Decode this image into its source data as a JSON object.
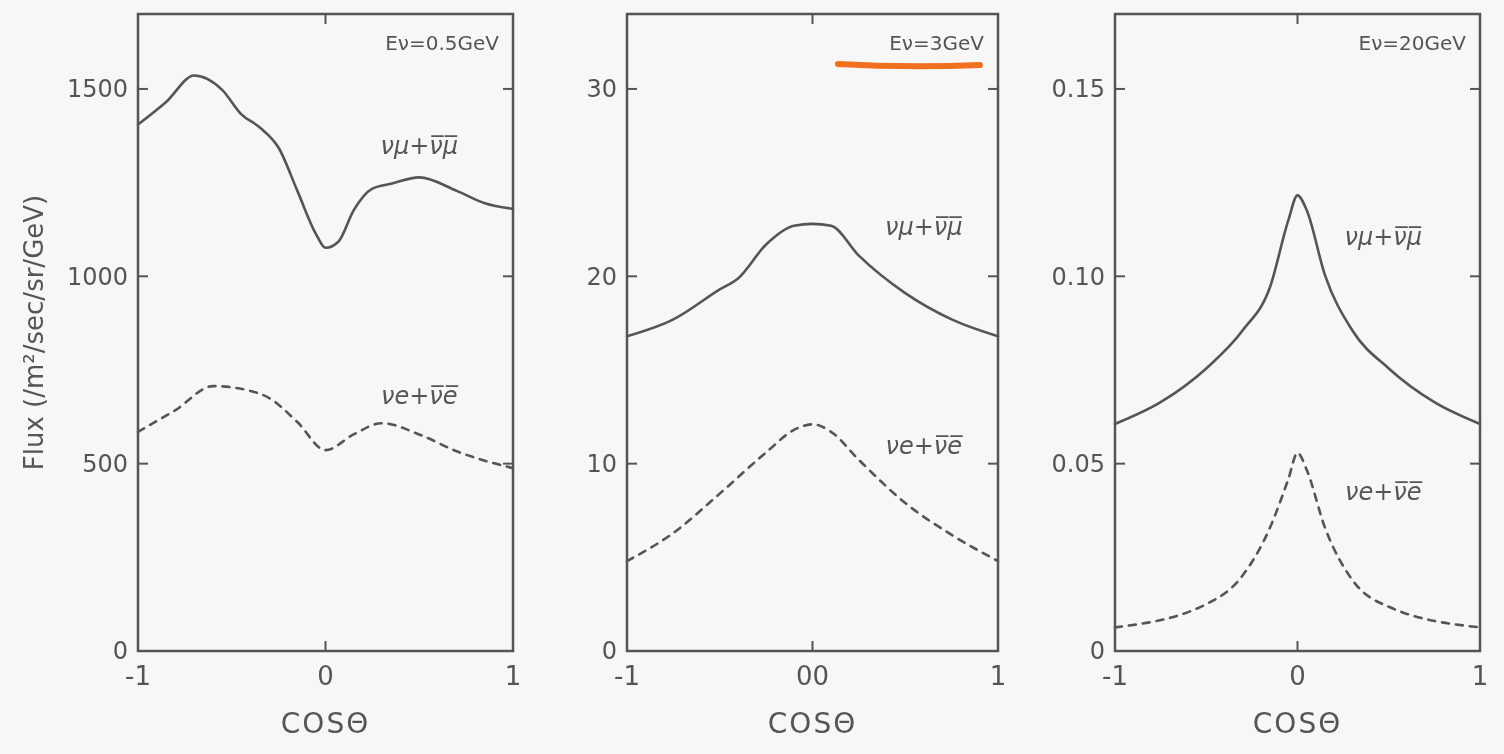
{
  "chart_data": [
    {
      "type": "line",
      "xlabel": "COSΘ",
      "ylabel": "Flux (/m²/sec/sr/GeV)",
      "annotations": [
        "Eν=0.5GeV"
      ],
      "xlim": [
        -1,
        1
      ],
      "xticks": [
        -1,
        0,
        1
      ],
      "ylim": [
        0,
        1700
      ],
      "yticks": [
        0,
        500,
        1000,
        1500
      ],
      "series": [
        {
          "name": "νμ+ν̅μ̅",
          "color": "#555555",
          "line_style": "solid",
          "x": [
            -1,
            -0.85,
            -0.7,
            -0.55,
            -0.45,
            -0.35,
            -0.25,
            -0.15,
            -0.05,
            0,
            0.07,
            0.15,
            0.25,
            0.35,
            0.5,
            0.7,
            0.85,
            1
          ],
          "values": [
            1405,
            1465,
            1536,
            1497,
            1433,
            1397,
            1343,
            1228,
            1112,
            1076,
            1093,
            1176,
            1234,
            1247,
            1264,
            1228,
            1195,
            1180
          ]
        },
        {
          "name": "νe+ν̅e̅",
          "color": "#555555",
          "line_style": "dashed",
          "x": [
            -1,
            -0.8,
            -0.6,
            -0.4,
            -0.3,
            -0.15,
            0,
            0.15,
            0.3,
            0.5,
            0.7,
            1
          ],
          "values": [
            585,
            643,
            707,
            694,
            675,
            611,
            536,
            578,
            608,
            578,
            533,
            488
          ]
        }
      ]
    },
    {
      "type": "line",
      "xlabel": "COSΘ",
      "annotations": [
        "Eν=3GeV"
      ],
      "xlim": [
        -1,
        1
      ],
      "xticks": [
        -1,
        {
          "value": 0,
          "label": "00"
        },
        1
      ],
      "ylim": [
        0,
        34
      ],
      "yticks": [
        0,
        10,
        20,
        30
      ],
      "series": [
        {
          "name": "νμ+ν̅μ̅",
          "color": "#555555",
          "line_style": "solid",
          "x": [
            -1,
            -0.75,
            -0.5,
            -0.4,
            -0.25,
            -0.1,
            0,
            0.1,
            0.25,
            0.5,
            0.75,
            1
          ],
          "values": [
            16.8,
            17.7,
            19.3,
            19.9,
            21.7,
            22.7,
            22.8,
            22.7,
            21.1,
            19.1,
            17.7,
            16.8
          ]
        },
        {
          "name": "νe+ν̅e̅",
          "color": "#555555",
          "line_style": "dashed",
          "x": [
            -1,
            -0.75,
            -0.5,
            -0.25,
            -0.1,
            0,
            0.1,
            0.25,
            0.5,
            0.75,
            1
          ],
          "values": [
            4.8,
            6.3,
            8.4,
            10.6,
            11.8,
            12.1,
            11.7,
            10.2,
            7.9,
            6.2,
            4.8
          ]
        }
      ]
    },
    {
      "type": "line",
      "xlabel": "COSΘ",
      "annotations": [
        "Eν=20GeV"
      ],
      "xlim": [
        -1,
        1
      ],
      "xticks": [
        -1,
        0,
        1
      ],
      "ylim": [
        0,
        0.17
      ],
      "yticks": [
        0,
        {
          "value": 0.05,
          "label": "0.05"
        },
        {
          "value": 0.1,
          "label": "0.10"
        },
        {
          "value": 0.15,
          "label": "0.15"
        }
      ],
      "series": [
        {
          "name": "νμ+ν̅μ̅",
          "color": "#555555",
          "line_style": "solid",
          "x": [
            -1,
            -0.75,
            -0.5,
            -0.3,
            -0.15,
            -0.05,
            0,
            0.05,
            0.15,
            0.3,
            0.5,
            0.75,
            1
          ],
          "values": [
            0.0606,
            0.0664,
            0.0754,
            0.0856,
            0.0972,
            0.115,
            0.1216,
            0.1177,
            0.1004,
            0.0856,
            0.0754,
            0.0664,
            0.0606
          ]
        },
        {
          "name": "νe+ν̅e̅",
          "color": "#555555",
          "line_style": "dashed",
          "x": [
            -1,
            -0.5,
            -0.3,
            -0.15,
            -0.05,
            0,
            0.05,
            0.15,
            0.3,
            0.5,
            1
          ],
          "values": [
            0.0063,
            0.0125,
            0.0202,
            0.033,
            0.0459,
            0.0529,
            0.0484,
            0.033,
            0.019,
            0.0118,
            0.0063
          ]
        }
      ]
    }
  ]
}
